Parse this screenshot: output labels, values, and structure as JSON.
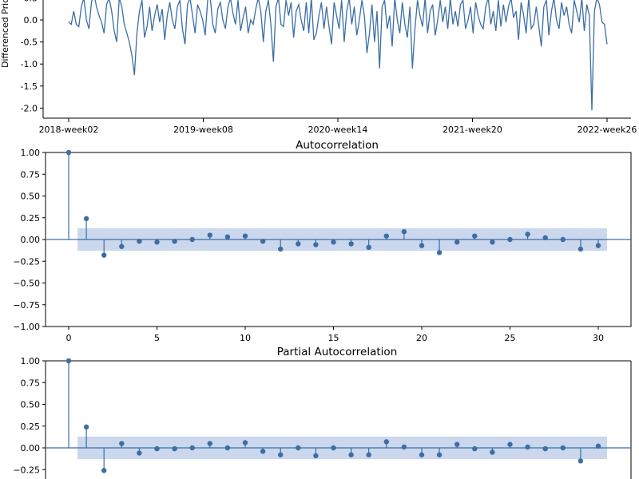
{
  "chart_data": [
    {
      "type": "line",
      "title": "",
      "ylabel": "Differenced Pric",
      "x_ticks": [
        "2018-week02",
        "2019-week08",
        "2020-week14",
        "2021-week20",
        "2022-week26"
      ],
      "y_ticks": [
        "0.5",
        "0.0",
        "-0.5",
        "-1.0",
        "-1.5",
        "-2.0"
      ],
      "ylim": [
        -2.2,
        0.5
      ],
      "color": "#3b6ea5",
      "values": [
        -0.05,
        -0.1,
        0.2,
        -0.1,
        -0.15,
        0.3,
        0.5,
        0.0,
        -0.2,
        0.4,
        0.6,
        0.3,
        0.1,
        -0.05,
        -0.3,
        0.35,
        0.5,
        0.2,
        -0.25,
        -0.5,
        0.5,
        0.3,
        -0.1,
        -0.3,
        -0.5,
        -0.8,
        -1.25,
        -0.3,
        0.2,
        0.45,
        -0.4,
        -0.15,
        0.3,
        -0.25,
        0.1,
        0.35,
        -0.05,
        0.25,
        -0.45,
        0.1,
        0.4,
        0.0,
        -0.2,
        0.3,
        0.45,
        -0.2,
        -0.55,
        0.35,
        0.5,
        0.1,
        -0.3,
        0.35,
        0.2,
        0.0,
        -0.35,
        0.45,
        0.5,
        -0.1,
        -0.3,
        0.25,
        0.4,
        0.0,
        -0.2,
        0.3,
        0.5,
        0.15,
        -0.1,
        0.45,
        -0.25,
        0.05,
        0.3,
        -0.3,
        0.0,
        -0.1,
        0.25,
        0.5,
        0.2,
        -0.5,
        0.2,
        0.45,
        -0.1,
        -0.95,
        0.3,
        0.5,
        -0.1,
        -0.15,
        0.45,
        0.1,
        0.4,
        -0.4,
        0.2,
        0.35,
        0.0,
        -0.25,
        0.4,
        -0.3,
        0.5,
        -0.45,
        -0.3,
        0.1,
        0.4,
        -0.2,
        0.3,
        -0.15,
        -0.55,
        0.4,
        0.1,
        -0.2,
        0.45,
        -0.5,
        0.2,
        0.5,
        -0.1,
        0.3,
        -0.35,
        0.0,
        0.45,
        0.1,
        -0.75,
        -0.3,
        0.35,
        -0.5,
        0.2,
        -1.1,
        0.3,
        0.45,
        -0.2,
        0.1,
        -0.6,
        0.5,
        0.0,
        -0.3,
        0.4,
        -0.1,
        -0.4,
        0.3,
        -1.1,
        -0.2,
        0.45,
        0.1,
        -0.15,
        0.5,
        -0.3,
        0.2,
        0.35,
        -0.35,
        0.0,
        0.45,
        -0.05,
        0.3,
        -0.2,
        0.5,
        -0.1,
        0.2,
        -0.15,
        0.35,
        0.45,
        -0.2,
        0.0,
        0.3,
        -0.3,
        0.4,
        0.1,
        -0.1,
        -0.2,
        0.3,
        0.5,
        -0.1,
        0.2,
        -0.25,
        0.45,
        -0.15,
        0.35,
        -0.05,
        0.3,
        0.5,
        0.05,
        0.2,
        -0.45,
        0.4,
        0.1,
        -0.3,
        0.5,
        -0.2,
        -0.1,
        0.3,
        -0.15,
        -0.6,
        0.3,
        0.45,
        -0.35,
        0.2,
        0.5,
        0.0,
        -0.2,
        0.4,
        0.1,
        0.3,
        -0.1,
        -0.3,
        0.45,
        0.2,
        -0.05,
        0.5,
        -0.25,
        0.35,
        0.1,
        -2.05,
        0.2,
        0.5,
        0.35,
        -0.05,
        -0.1,
        -0.55
      ]
    },
    {
      "type": "stem",
      "title": "Autocorrelation",
      "x_ticks": [
        "0",
        "5",
        "10",
        "15",
        "20",
        "25",
        "30"
      ],
      "y_ticks": [
        "1.00",
        "0.75",
        "0.50",
        "0.25",
        "0.00",
        "−0.25",
        "−0.50",
        "−0.75",
        "−1.00"
      ],
      "xlim": [
        -1.5,
        31
      ],
      "ylim": [
        -1,
        1
      ],
      "confidence_band": 0.13,
      "color": "#3b6ea5",
      "band_color": "#c5d3ea",
      "lags": [
        0,
        1,
        2,
        3,
        4,
        5,
        6,
        7,
        8,
        9,
        10,
        11,
        12,
        13,
        14,
        15,
        16,
        17,
        18,
        19,
        20,
        21,
        22,
        23,
        24,
        25,
        26,
        27,
        28,
        29,
        30
      ],
      "values": [
        1.0,
        0.24,
        -0.18,
        -0.08,
        -0.02,
        -0.03,
        -0.02,
        0.0,
        0.05,
        0.03,
        0.04,
        -0.02,
        -0.11,
        -0.05,
        -0.06,
        -0.03,
        -0.05,
        -0.09,
        0.04,
        0.09,
        -0.07,
        -0.15,
        -0.03,
        0.04,
        -0.03,
        0.0,
        0.06,
        0.02,
        0.0,
        -0.11,
        -0.07
      ]
    },
    {
      "type": "stem",
      "title": "Partial Autocorrelation",
      "x_ticks": [],
      "y_ticks": [
        "1.00",
        "0.75",
        "0.50",
        "0.25",
        "0.00",
        "−0.25"
      ],
      "xlim": [
        -1.5,
        31
      ],
      "ylim": [
        -1,
        1
      ],
      "confidence_band": 0.13,
      "color": "#3b6ea5",
      "band_color": "#c5d3ea",
      "lags": [
        0,
        1,
        2,
        3,
        4,
        5,
        6,
        7,
        8,
        9,
        10,
        11,
        12,
        13,
        14,
        15,
        16,
        17,
        18,
        19,
        20,
        21,
        22,
        23,
        24,
        25,
        26,
        27,
        28,
        29,
        30
      ],
      "values": [
        1.0,
        0.24,
        -0.26,
        0.05,
        -0.06,
        -0.01,
        -0.01,
        0.0,
        0.05,
        0.0,
        0.06,
        -0.04,
        -0.08,
        0.0,
        -0.09,
        0.0,
        -0.08,
        -0.08,
        0.07,
        0.01,
        -0.08,
        -0.08,
        0.04,
        -0.01,
        -0.05,
        0.04,
        0.01,
        -0.01,
        0.0,
        -0.15,
        0.02
      ]
    }
  ]
}
